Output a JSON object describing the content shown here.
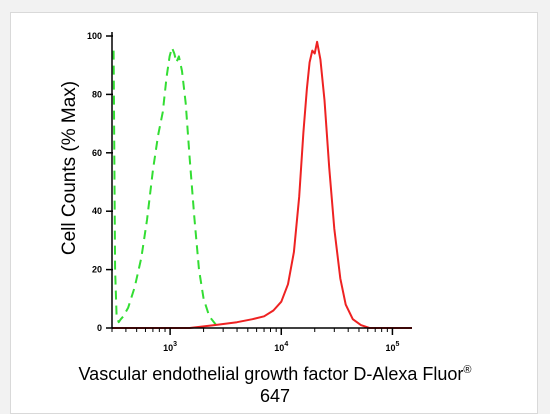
{
  "chart_data": {
    "type": "line",
    "title": "",
    "xlabel": "Vascular endothelial growth factor D-Alexa Fluor",
    "xlabel_sup": "®",
    "xlabel_line2": "647",
    "ylabel": "Cell Counts (% Max)",
    "x_scale": "log",
    "xlim": [
      300,
      150000
    ],
    "ylim": [
      0,
      100
    ],
    "yticks": [
      0,
      20,
      40,
      60,
      80,
      100
    ],
    "ytick_labels": [
      "0",
      "20",
      "40",
      "60",
      "80",
      "100"
    ],
    "xticks": [
      1000,
      10000,
      100000
    ],
    "xtick_labels": [
      {
        "base": "10",
        "exp": "3"
      },
      {
        "base": "10",
        "exp": "4"
      },
      {
        "base": "10",
        "exp": "5"
      }
    ],
    "grid": false,
    "series": [
      {
        "color": "#33dd33",
        "style": "dashed",
        "x": [
          310,
          320,
          330,
          345,
          360,
          380,
          420,
          480,
          550,
          620,
          700,
          780,
          860,
          930,
          990,
          1040,
          1090,
          1140,
          1200,
          1280,
          1380,
          1500,
          1650,
          1820,
          2000,
          2250,
          2600
        ],
        "y": [
          95,
          20,
          4,
          2,
          3,
          4,
          7,
          14,
          24,
          37,
          54,
          66,
          74,
          86,
          93,
          96,
          94,
          91,
          93,
          88,
          77,
          58,
          38,
          20,
          10,
          4,
          1
        ]
      },
      {
        "color": "#ee2222",
        "style": "solid",
        "x": [
          300,
          1500,
          2500,
          4000,
          5500,
          7000,
          8500,
          10000,
          11500,
          13000,
          14500,
          15800,
          17000,
          18000,
          19000,
          20000,
          21000,
          22500,
          24500,
          27000,
          30000,
          34000,
          38000,
          44000,
          52000,
          62000,
          80000,
          150000
        ],
        "y": [
          0,
          0,
          1,
          2,
          3,
          4,
          6,
          9,
          15,
          26,
          45,
          67,
          82,
          91,
          95,
          94,
          98,
          92,
          78,
          55,
          34,
          17,
          8,
          3,
          1,
          0,
          0,
          0
        ]
      }
    ]
  }
}
